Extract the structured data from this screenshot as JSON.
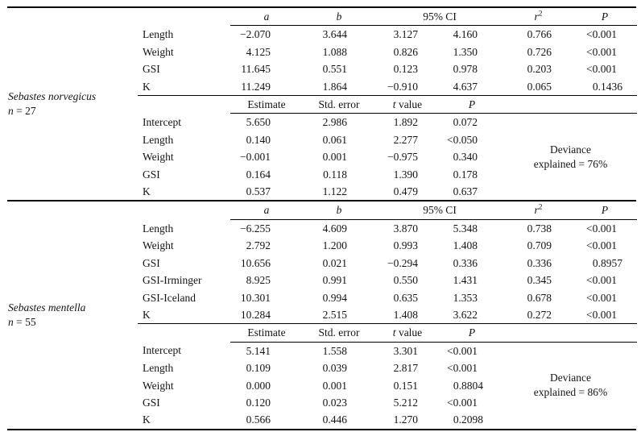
{
  "accent_colors": {
    "text": "#141414",
    "rule": "#000000",
    "background": "#ffffff"
  },
  "model_headers": {
    "a": "<i>a</i>",
    "b": "<i>b</i>",
    "ci": "95% CI",
    "r2": "<i>r</i><sup>2</sup>",
    "p": "<i>P</i>"
  },
  "coef_headers": {
    "estimate": "Estimate",
    "std_error": "Std. error",
    "t_value": "<i>t</i> value",
    "p": "<i>P</i>"
  },
  "sections": [
    {
      "species": "<i>Sebastes norvegicus</i>",
      "n": "<i>n</i> = 27",
      "model_rows": [
        [
          "Length",
          "−2.070",
          "3.644",
          "3.127",
          "4.160",
          "0.766",
          "<0.001"
        ],
        [
          "Weight",
          "4.125",
          "1.088",
          "0.826",
          "1.350",
          "0.726",
          "<0.001"
        ],
        [
          "GSI",
          "11.645",
          "0.551",
          "0.123",
          "0.978",
          "0.203",
          "<0.001"
        ],
        [
          "K",
          "11.249",
          "1.864",
          "−0.910",
          "4.637",
          "0.065",
          "0.1436"
        ]
      ],
      "coef_rows": [
        [
          "Intercept",
          "5.650",
          "2.986",
          "1.892",
          "0.072"
        ],
        [
          "Length",
          "0.140",
          "0.061",
          "2.277",
          "<0.050"
        ],
        [
          "Weight",
          "−0.001",
          "0.001",
          "−0.975",
          "0.340"
        ],
        [
          "GSI",
          "0.164",
          "0.118",
          "1.390",
          "0.178"
        ],
        [
          "K",
          "0.537",
          "1.122",
          "0.479",
          "0.637"
        ]
      ],
      "deviance": "Deviance<br>explained = 76%"
    },
    {
      "species": "<i>Sebastes mentella</i>",
      "n": "<i>n</i> = 55",
      "model_rows": [
        [
          "Length",
          "−6.255",
          "4.609",
          "3.870",
          "5.348",
          "0.738",
          "<0.001"
        ],
        [
          "Weight",
          "2.792",
          "1.200",
          "0.993",
          "1.408",
          "0.709",
          "<0.001"
        ],
        [
          "GSI",
          "10.656",
          "0.021",
          "−0.294",
          "0.336",
          "0.336",
          "0.8957"
        ],
        [
          "GSI-Irminger",
          "8.925",
          "0.991",
          "0.550",
          "1.431",
          "0.345",
          "<0.001"
        ],
        [
          "GSI-Iceland",
          "10.301",
          "0.994",
          "0.635",
          "1.353",
          "0.678",
          "<0.001"
        ],
        [
          "K",
          "10.284",
          "2.515",
          "1.408",
          "3.622",
          "0.272",
          "<0.001"
        ]
      ],
      "coef_rows": [
        [
          "Intercept",
          "5.141",
          "1.558",
          "3.301",
          "<0.001"
        ],
        [
          "Length",
          "0.109",
          "0.039",
          "2.817",
          "<0.001"
        ],
        [
          "Weight",
          "0.000",
          "0.001",
          "0.151",
          "0.8804"
        ],
        [
          "GSI",
          "0.120",
          "0.023",
          "5.212",
          "<0.001"
        ],
        [
          "K",
          "0.566",
          "0.446",
          "1.270",
          "0.2098"
        ]
      ],
      "deviance": "Deviance<br>explained = 86%"
    }
  ]
}
